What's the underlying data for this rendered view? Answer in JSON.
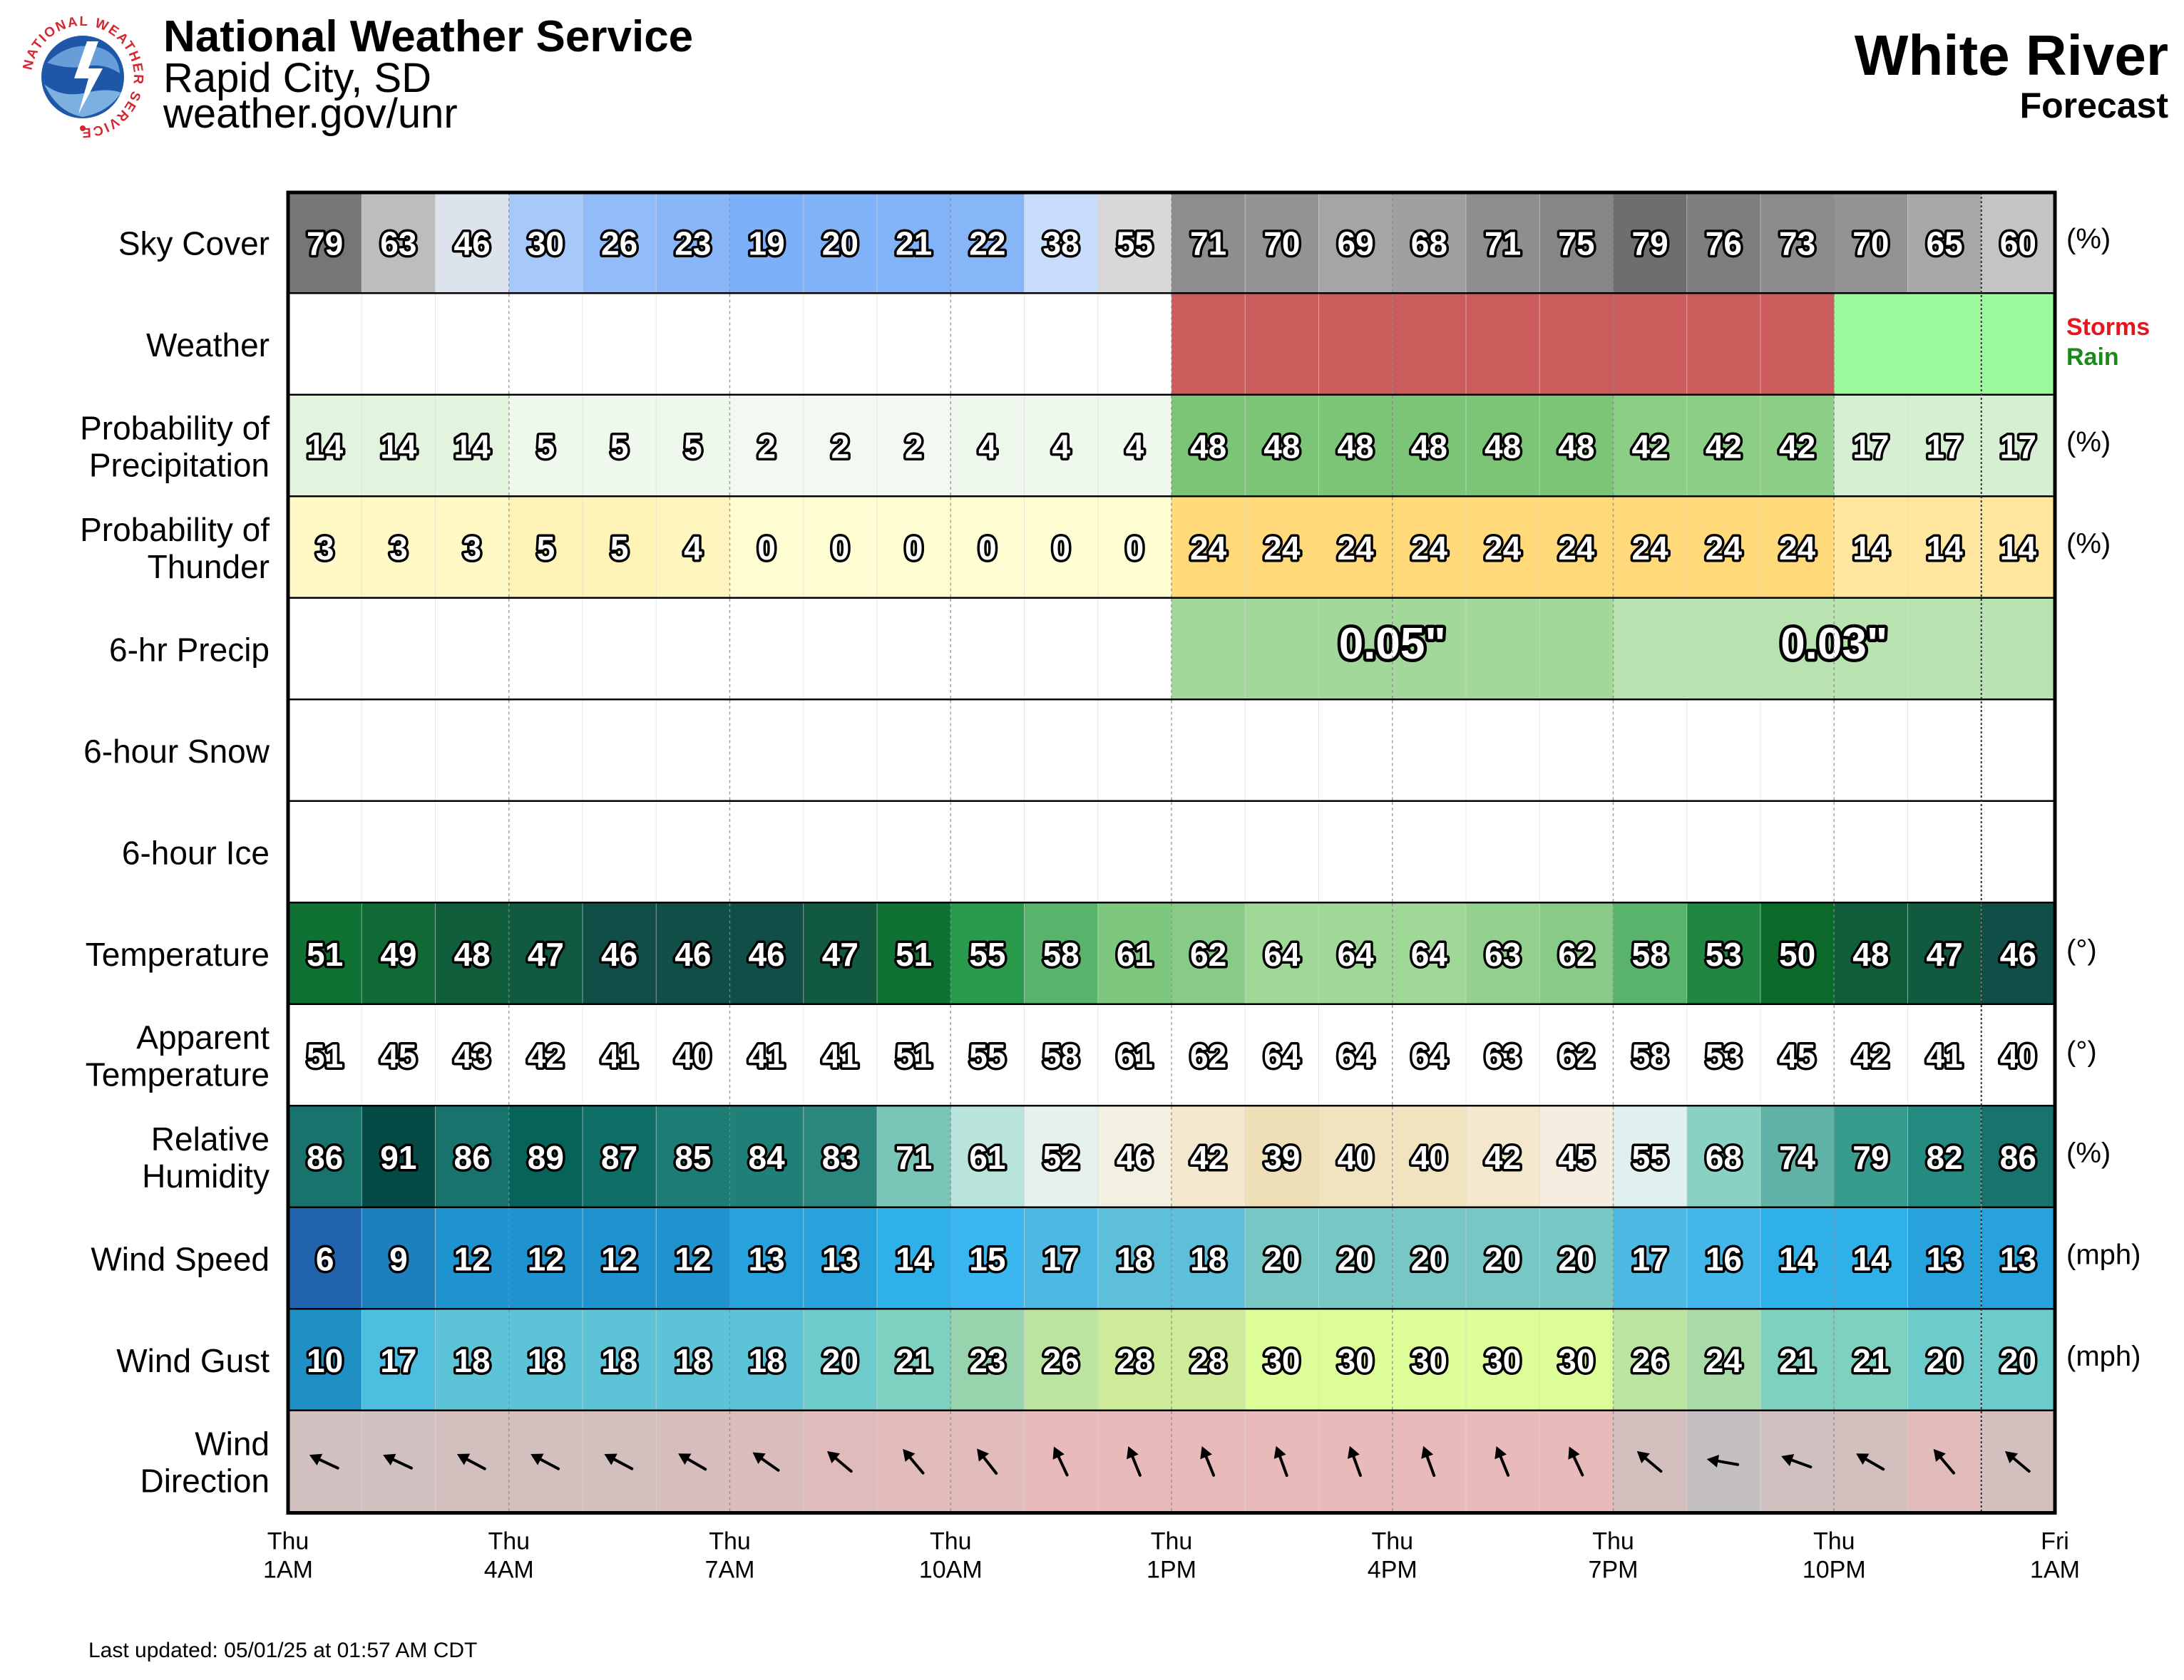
{
  "header": {
    "org": "National Weather Service",
    "office": "Rapid City, SD",
    "url": "weather.gov/unr",
    "logo_text": "NATIONAL WEATHER SERVICE",
    "location": "White River",
    "subtitle": "Forecast"
  },
  "footer": {
    "updated": "Last updated: 05/01/25 at 01:57 AM CDT"
  },
  "colors": {
    "storms": "#cc5b5b",
    "rain": "#9cf99c",
    "storms_text": "#e8161c",
    "rain_text": "#1a8a1a",
    "qpf_first": "#a2d99a",
    "qpf_second": "#b8e3b0",
    "border": "#000000"
  },
  "chart_data": {
    "type": "table",
    "hours": 24,
    "x_ticks": [
      {
        "day": "Thu",
        "time": "1AM"
      },
      {
        "day": "Thu",
        "time": "4AM"
      },
      {
        "day": "Thu",
        "time": "7AM"
      },
      {
        "day": "Thu",
        "time": "10AM"
      },
      {
        "day": "Thu",
        "time": "1PM"
      },
      {
        "day": "Thu",
        "time": "4PM"
      },
      {
        "day": "Thu",
        "time": "7PM"
      },
      {
        "day": "Thu",
        "time": "10PM"
      },
      {
        "day": "Fri",
        "time": "1AM"
      }
    ],
    "rows": [
      {
        "key": "sky",
        "label": [
          "Sky Cover"
        ],
        "unit": "(%)",
        "values": [
          79,
          63,
          46,
          30,
          26,
          23,
          19,
          20,
          21,
          22,
          38,
          55,
          71,
          70,
          69,
          68,
          71,
          75,
          79,
          76,
          73,
          70,
          65,
          60
        ],
        "colors": [
          "#767676",
          "#bdbdbd",
          "#dde3ed",
          "#a6c9fa",
          "#92bcf8",
          "#88b6f8",
          "#7cb0f8",
          "#80b2f8",
          "#82b3f8",
          "#86b5f8",
          "#c8dcfb",
          "#d8d8d8",
          "#8e8e8e",
          "#939393",
          "#a5a5a5",
          "#9f9f9f",
          "#8e8e8e",
          "#868686",
          "#6e6e6e",
          "#7e7e7e",
          "#8c8c8c",
          "#939393",
          "#a8a8a8",
          "#c4c4c4"
        ]
      },
      {
        "key": "weather",
        "label": [
          "Weather"
        ],
        "unit": "",
        "values": [
          "",
          "",
          "",
          "",
          "",
          "",
          "",
          "",
          "",
          "",
          "",
          "",
          "Storms",
          "Storms",
          "Storms",
          "Storms",
          "Storms",
          "Storms",
          "Storms",
          "Storms",
          "Storms",
          "Rain",
          "Rain",
          "Rain"
        ],
        "legend": [
          "Storms",
          "Rain"
        ]
      },
      {
        "key": "pop",
        "label": [
          "Probability of",
          "Precipitation"
        ],
        "unit": "(%)",
        "values": [
          14,
          14,
          14,
          5,
          5,
          5,
          2,
          2,
          2,
          4,
          4,
          4,
          48,
          48,
          48,
          48,
          48,
          48,
          42,
          42,
          42,
          17,
          17,
          17
        ],
        "colors": [
          "#e2f4de",
          "#e2f4de",
          "#e2f4de",
          "#eef8ec",
          "#eef8ec",
          "#eef8ec",
          "#f2f9f1",
          "#f2f9f1",
          "#f2f9f1",
          "#eff8ed",
          "#eff8ed",
          "#eff8ed",
          "#7cc576",
          "#7cc576",
          "#7cc576",
          "#7cc576",
          "#7cc576",
          "#7cc576",
          "#8cce86",
          "#8cce86",
          "#8cce86",
          "#d6efd2",
          "#d6efd2",
          "#d6efd2"
        ]
      },
      {
        "key": "thunder",
        "label": [
          "Probability of",
          "Thunder"
        ],
        "unit": "(%)",
        "values": [
          3,
          3,
          3,
          5,
          5,
          4,
          0,
          0,
          0,
          0,
          0,
          0,
          24,
          24,
          24,
          24,
          24,
          24,
          24,
          24,
          24,
          14,
          14,
          14
        ],
        "colors": [
          "#fff9c6",
          "#fff9c6",
          "#fff9c6",
          "#fff3b8",
          "#fff3b8",
          "#fff6bf",
          "#fffdd2",
          "#fffdd2",
          "#fffdd2",
          "#fffdd2",
          "#fffdd2",
          "#fffdd2",
          "#ffd97a",
          "#ffd97a",
          "#ffd97a",
          "#ffd97a",
          "#ffd97a",
          "#ffd97a",
          "#ffd97a",
          "#ffd97a",
          "#ffd97a",
          "#ffe7a0",
          "#ffe7a0",
          "#ffe7a0"
        ]
      },
      {
        "key": "qpf",
        "label": [
          "6-hr Precip"
        ],
        "unit": "",
        "periods": [
          {
            "start": 12,
            "end": 18,
            "value": "0.05\""
          },
          {
            "start": 18,
            "end": 24,
            "value": "0.03\""
          }
        ]
      },
      {
        "key": "snow",
        "label": [
          "6-hour Snow"
        ],
        "unit": "",
        "periods": []
      },
      {
        "key": "ice",
        "label": [
          "6-hour Ice"
        ],
        "unit": "",
        "periods": []
      },
      {
        "key": "temp",
        "label": [
          "Temperature"
        ],
        "unit": "(°)",
        "values": [
          51,
          49,
          48,
          47,
          46,
          46,
          46,
          47,
          51,
          55,
          58,
          61,
          62,
          64,
          64,
          64,
          63,
          62,
          58,
          53,
          50,
          48,
          47,
          46
        ],
        "colors": [
          "#0f7234",
          "#0f6a36",
          "#105e3c",
          "#115a40",
          "#114e48",
          "#114e48",
          "#114e48",
          "#115a40",
          "#0f7234",
          "#2a9b4d",
          "#5ab36a",
          "#7ec77e",
          "#88cb86",
          "#a0d898",
          "#a0d898",
          "#a0d898",
          "#94d08e",
          "#88cb86",
          "#5ab36a",
          "#208740",
          "#0c6b2a",
          "#105e3c",
          "#115a40",
          "#114e48"
        ]
      },
      {
        "key": "apparent",
        "label": [
          "Apparent",
          "Temperature"
        ],
        "unit": "(°)",
        "values": [
          51,
          45,
          43,
          42,
          41,
          40,
          41,
          41,
          51,
          55,
          58,
          61,
          62,
          64,
          64,
          64,
          63,
          62,
          58,
          53,
          45,
          42,
          41,
          40
        ]
      },
      {
        "key": "rh",
        "label": [
          "Relative",
          "Humidity"
        ],
        "unit": "(%)",
        "values": [
          86,
          91,
          86,
          89,
          87,
          85,
          84,
          83,
          71,
          61,
          52,
          46,
          42,
          39,
          40,
          40,
          42,
          45,
          55,
          68,
          74,
          79,
          82,
          86
        ],
        "colors": [
          "#17736c",
          "#054a44",
          "#17736c",
          "#066359",
          "#0f6f66",
          "#1d7c73",
          "#208078",
          "#2a877e",
          "#79c6b9",
          "#b8e4dc",
          "#e6f1ef",
          "#f3efe1",
          "#f3e8ce",
          "#efdfb6",
          "#f1e3bf",
          "#f1e3bf",
          "#f3e8ce",
          "#f5ede0",
          "#e0f0ee",
          "#8bd1c3",
          "#5fb2a5",
          "#379b8d",
          "#238b80",
          "#17736c"
        ]
      },
      {
        "key": "wind",
        "label": [
          "Wind Speed"
        ],
        "unit": "(mph)",
        "values": [
          6,
          9,
          12,
          12,
          12,
          12,
          13,
          13,
          14,
          15,
          17,
          18,
          18,
          20,
          20,
          20,
          20,
          20,
          17,
          16,
          14,
          14,
          13,
          13
        ],
        "colors": [
          "#2263ad",
          "#1e7fbe",
          "#1f92d0",
          "#1f92d0",
          "#1f92d0",
          "#1f92d0",
          "#28a2dc",
          "#28a2dc",
          "#30b0e8",
          "#3ab6f0",
          "#4db9e3",
          "#5dbfd9",
          "#5dbfd9",
          "#77c7c4",
          "#77c7c4",
          "#77c7c4",
          "#77c7c4",
          "#77c7c4",
          "#4db9e3",
          "#44b7ea",
          "#30b0e8",
          "#30b0e8",
          "#28a2dc",
          "#28a2dc"
        ]
      },
      {
        "key": "gust",
        "label": [
          "Wind Gust"
        ],
        "unit": "(mph)",
        "values": [
          10,
          17,
          18,
          18,
          18,
          18,
          18,
          20,
          21,
          23,
          26,
          28,
          28,
          30,
          30,
          30,
          30,
          30,
          26,
          24,
          21,
          21,
          20,
          20
        ],
        "colors": [
          "#1f8fc6",
          "#4dbde0",
          "#5dc4d8",
          "#5dc4d8",
          "#5dc4d8",
          "#5dc4d8",
          "#5dc4d8",
          "#6ecbcc",
          "#7ed1c0",
          "#97d4ad",
          "#bae4a0",
          "#cdeb99",
          "#cdeb99",
          "#dcfd98",
          "#dcfd98",
          "#dcfd98",
          "#dcfd98",
          "#dcfd98",
          "#bae4a0",
          "#a8dba7",
          "#7ed1c0",
          "#7ed1c0",
          "#6ecbcc",
          "#6ecbcc"
        ]
      },
      {
        "key": "dir",
        "label": [
          "Wind",
          "Direction"
        ],
        "unit": "",
        "values": [
          295,
          295,
          298,
          298,
          298,
          300,
          305,
          310,
          320,
          322,
          335,
          338,
          338,
          340,
          340,
          340,
          338,
          335,
          310,
          280,
          290,
          300,
          320,
          310
        ],
        "colors": [
          "#d1c0c0",
          "#d1c0c0",
          "#d4bfbf",
          "#d4bfbf",
          "#d4bfbf",
          "#d8bdbd",
          "#dbbcbc",
          "#dfbbbb",
          "#e2bbbb",
          "#e2bbbb",
          "#e8baba",
          "#e8baba",
          "#e8baba",
          "#e8baba",
          "#e8baba",
          "#e8baba",
          "#e8baba",
          "#e8baba",
          "#d4bfbf",
          "#c4c0c0",
          "#d1c0c0",
          "#d4bfbf",
          "#e2bbbb",
          "#d4bfbf"
        ]
      }
    ]
  }
}
